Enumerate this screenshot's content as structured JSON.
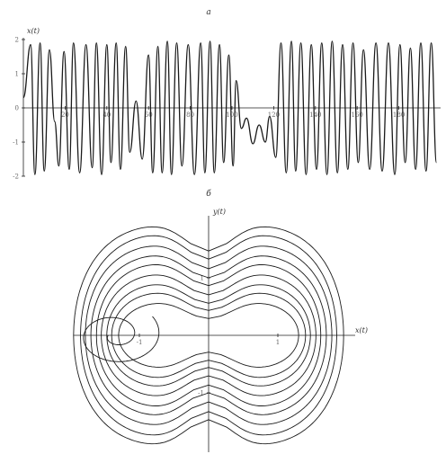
{
  "chart_data": [
    {
      "panel_label": "а",
      "type": "line",
      "ylabel": "x(t)",
      "xlim": [
        0,
        200
      ],
      "ylim": [
        -2,
        2
      ],
      "x_ticks": [
        20,
        40,
        60,
        80,
        100,
        120,
        140,
        160,
        180
      ],
      "y_ticks": [
        2,
        1,
        0,
        -1,
        -2
      ],
      "x_tick_labels": [
        "20",
        "40",
        "60",
        "80",
        "100",
        "120",
        "140",
        "160",
        "180"
      ],
      "y_tick_labels": [
        "2",
        "1",
        "0",
        "-1",
        "-2"
      ],
      "series": [
        {
          "x": [
            0,
            3.5,
            5.5,
            8,
            10,
            12.5,
            15,
            17,
            19.5,
            22,
            24,
            27,
            30,
            33,
            35,
            37.5,
            40,
            42,
            44.5,
            46.5,
            49,
            51,
            54,
            57,
            60,
            62,
            64.5,
            66.5,
            69,
            71,
            73.5,
            76,
            79,
            82,
            85,
            87,
            89.5,
            91.5,
            94,
            96,
            98.5,
            100.5,
            102,
            104.5,
            107,
            110,
            113,
            116,
            118,
            121,
            123.5,
            126,
            128.5,
            130.5,
            133,
            135.5,
            138,
            140.5,
            143,
            145.5,
            148,
            150.5,
            153,
            155.5,
            158,
            160.5,
            163,
            166,
            169,
            172,
            175,
            178,
            180.5,
            183,
            185.5,
            188,
            190.5,
            193,
            195.5,
            198
          ],
          "y": [
            0.3,
            1.85,
            -1.95,
            1.9,
            -1.85,
            1.7,
            -0.4,
            -1.7,
            1.65,
            -1.8,
            1.9,
            -1.9,
            1.85,
            -1.75,
            1.9,
            -1.95,
            1.85,
            -1.6,
            1.9,
            -1.8,
            1.8,
            -1.3,
            0.2,
            -1.5,
            1.55,
            -1.9,
            1.8,
            -1.9,
            1.95,
            -1.95,
            1.9,
            -1.7,
            1.85,
            -1.95,
            1.9,
            -1.9,
            1.95,
            -1.9,
            1.85,
            -1.6,
            1.55,
            -1.7,
            0.8,
            -0.6,
            -0.3,
            -1.05,
            -0.5,
            -1.0,
            -0.25,
            -1.45,
            1.9,
            -1.9,
            1.95,
            -1.85,
            1.9,
            -1.95,
            1.85,
            -1.8,
            1.9,
            -1.95,
            1.95,
            -1.9,
            1.85,
            -1.8,
            1.9,
            -1.6,
            1.7,
            -1.8,
            1.9,
            -1.85,
            1.9,
            -1.95,
            1.85,
            -1.6,
            1.75,
            -1.8,
            1.9,
            -1.85,
            1.9,
            -1.6
          ]
        }
      ]
    },
    {
      "panel_label": "б",
      "type": "line",
      "xlabel": "x(t)",
      "ylabel": "y(t)",
      "xlim": [
        -2,
        2
      ],
      "ylim": [
        -2,
        2
      ],
      "x_ticks": [
        -1,
        1
      ],
      "y_ticks": [
        1,
        -1
      ],
      "x_tick_labels": [
        "-1",
        "1"
      ],
      "y_tick_labels": [
        "1",
        "-1"
      ],
      "orbits": [
        {
          "x": 1.95,
          "y": 1.95
        },
        {
          "x": 1.85,
          "y": 1.8
        },
        {
          "x": 1.78,
          "y": 1.62
        },
        {
          "x": 1.7,
          "y": 1.45
        },
        {
          "x": 1.62,
          "y": 1.3
        },
        {
          "x": 1.55,
          "y": 1.12
        },
        {
          "x": 1.47,
          "y": 0.95
        },
        {
          "x": 1.4,
          "y": 0.8
        },
        {
          "x": 1.3,
          "y": 0.62
        }
      ],
      "loop": {
        "cx": -1.7,
        "cy": 0.0
      }
    }
  ]
}
